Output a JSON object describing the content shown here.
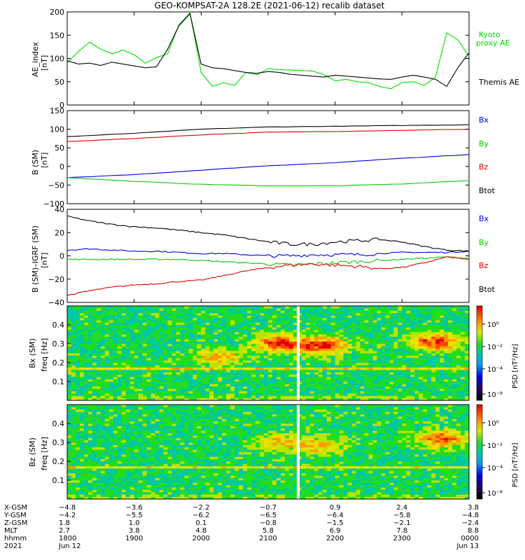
{
  "title": "GEO-KOMPSAT-2A 128.2E (2021-06-12) recalib dataset",
  "chart_data": [
    {
      "type": "line",
      "panel": "ae",
      "ylabel": "AE_index [nT]",
      "ylim": [
        0,
        200
      ],
      "yticks": [
        0,
        50,
        100,
        150,
        200
      ],
      "x": [
        1800,
        1810,
        1820,
        1830,
        1840,
        1850,
        1900,
        1910,
        1920,
        1930,
        1940,
        1950,
        2000,
        2010,
        2020,
        2030,
        2040,
        2050,
        2100,
        2110,
        2120,
        2130,
        2140,
        2150,
        2200,
        2210,
        2220,
        2230,
        2240,
        2250,
        2300,
        2310,
        2320,
        2330,
        2340,
        2350,
        2400
      ],
      "series": [
        {
          "name": "Kyoto proxy AE",
          "color": "#00dd00",
          "values": [
            90,
            115,
            135,
            120,
            110,
            118,
            108,
            90,
            102,
            110,
            172,
            198,
            70,
            40,
            48,
            42,
            70,
            65,
            78,
            76,
            75,
            74,
            73,
            65,
            52,
            55,
            50,
            48,
            40,
            35,
            48,
            50,
            42,
            60,
            155,
            140,
            105
          ]
        },
        {
          "name": "Themis AE",
          "color": "#000000",
          "values": [
            95,
            88,
            90,
            85,
            92,
            88,
            84,
            80,
            82,
            120,
            170,
            196,
            88,
            80,
            78,
            74,
            70,
            68,
            72,
            70,
            66,
            64,
            62,
            60,
            64,
            62,
            60,
            58,
            56,
            55,
            60,
            64,
            60,
            55,
            40,
            80,
            112
          ]
        }
      ]
    },
    {
      "type": "line",
      "panel": "bsm",
      "ylabel": "B (SM) [nT]",
      "ylim": [
        -100,
        150
      ],
      "yticks": [
        -100,
        -50,
        0,
        50,
        100,
        150
      ],
      "x": [
        1800,
        1900,
        2000,
        2100,
        2200,
        2300,
        2400
      ],
      "series": [
        {
          "name": "Bx",
          "color": "#0000dd",
          "values": [
            -30,
            -22,
            -10,
            2,
            10,
            22,
            32
          ]
        },
        {
          "name": "By",
          "color": "#00cc00",
          "values": [
            -30,
            -40,
            -48,
            -52,
            -52,
            -47,
            -38
          ]
        },
        {
          "name": "Bz",
          "color": "#dd0000",
          "values": [
            67,
            75,
            85,
            92,
            94,
            97,
            100
          ]
        },
        {
          "name": "Btot",
          "color": "#000000",
          "values": [
            80,
            89,
            100,
            106,
            108,
            110,
            112
          ]
        }
      ]
    },
    {
      "type": "line",
      "panel": "bigrf",
      "ylabel": "B (SM)-IGRF (SM) [nT]",
      "ylim": [
        -40,
        40
      ],
      "yticks": [
        -40,
        -20,
        0,
        20,
        40
      ],
      "x": [
        1800,
        1820,
        1840,
        1900,
        1920,
        1940,
        2000,
        2020,
        2040,
        2100,
        2120,
        2140,
        2200,
        2220,
        2240,
        2300,
        2320,
        2340,
        2400
      ],
      "series": [
        {
          "name": "Bx",
          "color": "#0000dd",
          "values": [
            5,
            6,
            5,
            4,
            4,
            3,
            2,
            2,
            1,
            0,
            0,
            1,
            1,
            1,
            2,
            3,
            3,
            3,
            4
          ]
        },
        {
          "name": "By",
          "color": "#00cc00",
          "values": [
            -3,
            -3,
            -3,
            -3,
            -3,
            -3,
            -4,
            -5,
            -6,
            -7,
            -8,
            -7,
            -6,
            -5,
            -4,
            -3,
            -2,
            -1,
            -2
          ]
        },
        {
          "name": "Bz",
          "color": "#dd0000",
          "values": [
            -34,
            -30,
            -27,
            -25,
            -24,
            -22,
            -21,
            -17,
            -13,
            -10,
            -8,
            -7,
            -8,
            -9,
            -11,
            -10,
            -6,
            -1,
            -3
          ]
        },
        {
          "name": "Btot",
          "color": "#000000",
          "values": [
            34,
            30,
            27,
            25,
            24,
            22,
            20,
            18,
            15,
            12,
            10,
            10,
            12,
            13,
            14,
            12,
            8,
            5,
            4
          ]
        }
      ]
    },
    {
      "type": "heatmap",
      "panel": "bxpsd",
      "ylabel": "Bx (SM) freq [Hz]",
      "ylim": [
        0,
        0.5
      ],
      "yticks": [
        0.1,
        0.2,
        0.3,
        0.4
      ],
      "colorbar": {
        "label": "PSD [nT²/Hz]",
        "ticks": [
          "10⁰",
          "10⁻²",
          "10⁻⁴",
          "10⁻⁸"
        ]
      },
      "hotspots": [
        {
          "t": 2110,
          "f": 0.3,
          "level": "high"
        },
        {
          "t": 2150,
          "f": 0.29,
          "level": "high"
        },
        {
          "t": 2330,
          "f": 0.31,
          "level": "high"
        },
        {
          "t": 2015,
          "f": 0.23,
          "level": "medium"
        }
      ],
      "data_gap": 2127
    },
    {
      "type": "heatmap",
      "panel": "bzpsd",
      "ylabel": "Bz (SM) freq [Hz]",
      "ylim": [
        0,
        0.5
      ],
      "yticks": [
        0.1,
        0.2,
        0.3,
        0.4
      ],
      "colorbar": {
        "label": "PSD [nT²/Hz]",
        "ticks": [
          "10⁰",
          "10⁻²",
          "10⁻⁴",
          "10⁻⁸"
        ]
      },
      "hotspots": [
        {
          "t": 2110,
          "f": 0.3,
          "level": "medium"
        },
        {
          "t": 2150,
          "f": 0.28,
          "level": "medium"
        },
        {
          "t": 2335,
          "f": 0.32,
          "level": "high"
        }
      ],
      "data_gap": 2127
    }
  ],
  "legend_ae": {
    "kyoto_line1": "Kyoto",
    "kyoto_line2": "proxy AE",
    "themis": "Themis AE"
  },
  "legend_b": [
    "Bx",
    "By",
    "Bz",
    "Btot"
  ],
  "yticklabels": {
    "ae": [
      "0",
      "50",
      "100",
      "150",
      "200"
    ],
    "bsm": [
      "−100",
      "−50",
      "0",
      "50",
      "100",
      "150"
    ],
    "bigrf": [
      "−40",
      "−20",
      "0",
      "20",
      "40"
    ],
    "psd": [
      "0.1",
      "0.2",
      "0.3",
      "0.4"
    ]
  },
  "ylabels": {
    "ae_1": "AE_index",
    "ae_2": "[nT]",
    "bsm_1": "B (SM)",
    "bsm_2": "[nT]",
    "bigrf_1": "B (SM)–IGRF (SM)",
    "bigrf_2": "[nT]",
    "bxpsd_1": "Bx (SM)",
    "bxpsd_2": "freq [Hz]",
    "bzpsd_1": "Bz (SM)",
    "bzpsd_2": "freq [Hz]"
  },
  "colorbar_label": "PSD [nT²/Hz]",
  "colorbar_ticks": [
    "10⁰",
    "10⁻²",
    "10⁻⁴",
    "10⁻⁸"
  ],
  "xaxis": {
    "row_labels": [
      "X-GSM",
      "Y-GSM",
      "Z-GSM",
      "MLT",
      "hhmm",
      "2021"
    ],
    "columns": [
      [
        "−4.8",
        "−4.2",
        "1.8",
        "2.7",
        "1800",
        "Jun 12"
      ],
      [
        "−3.6",
        "−5.5",
        "1.0",
        "3.8",
        "1900",
        ""
      ],
      [
        "−2.2",
        "−6.2",
        "0.1",
        "4.8",
        "2000",
        ""
      ],
      [
        "−0.7",
        "−6.5",
        "−0.8",
        "5.8",
        "2100",
        ""
      ],
      [
        "0.9",
        "−6.4",
        "−1.5",
        "6.9",
        "2200",
        ""
      ],
      [
        "2.4",
        "−5.8",
        "−2.1",
        "7.8",
        "2300",
        ""
      ],
      [
        "3.8",
        "−4.8",
        "−2.4",
        "8.8",
        "0000",
        "Jun 13"
      ]
    ]
  }
}
